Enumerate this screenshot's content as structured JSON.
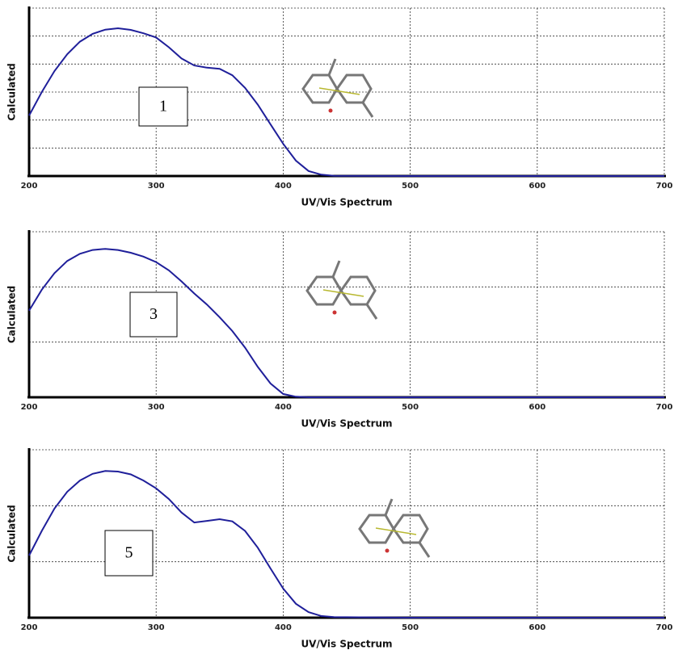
{
  "chart_data": [
    {
      "type": "line",
      "x_label": "UV/Vis Spectrum",
      "y_label": "Calculated",
      "annotation": "1",
      "x": [
        200,
        210,
        220,
        230,
        240,
        250,
        260,
        270,
        280,
        290,
        300,
        310,
        320,
        330,
        340,
        350,
        360,
        370,
        380,
        390,
        400,
        410,
        420,
        430,
        440,
        500,
        600,
        700
      ],
      "series": [
        {
          "color": "#1f1f9a",
          "values": [
            2.16,
            3.0,
            3.75,
            4.35,
            4.8,
            5.08,
            5.23,
            5.28,
            5.22,
            5.1,
            4.95,
            4.6,
            4.2,
            3.95,
            3.87,
            3.83,
            3.6,
            3.15,
            2.55,
            1.85,
            1.15,
            0.55,
            0.18,
            0.05,
            0.01,
            0,
            0,
            0
          ]
        }
      ],
      "xlim": [
        200,
        700
      ],
      "xticks": [
        200,
        300,
        400,
        500,
        600,
        700
      ],
      "ylim": [
        0,
        6
      ],
      "ygrid": [
        1,
        2,
        3,
        4,
        5,
        6
      ],
      "grid": true
    },
    {
      "type": "line",
      "x_label": "UV/Vis Spectrum",
      "y_label": "Calculated",
      "annotation": "3",
      "x": [
        200,
        210,
        220,
        230,
        240,
        250,
        260,
        270,
        280,
        290,
        300,
        310,
        320,
        330,
        340,
        350,
        360,
        370,
        380,
        390,
        400,
        410,
        420,
        430,
        440,
        500,
        600,
        700
      ],
      "series": [
        {
          "color": "#1f1f9a",
          "values": [
            1.57,
            1.95,
            2.25,
            2.47,
            2.6,
            2.67,
            2.69,
            2.67,
            2.62,
            2.55,
            2.45,
            2.3,
            2.1,
            1.88,
            1.68,
            1.45,
            1.2,
            0.9,
            0.55,
            0.25,
            0.06,
            0.01,
            0,
            0,
            0,
            0,
            0,
            0
          ]
        }
      ],
      "xlim": [
        200,
        700
      ],
      "xticks": [
        200,
        300,
        400,
        500,
        600,
        700
      ],
      "ylim": [
        0,
        3
      ],
      "ygrid": [
        1,
        2,
        3
      ],
      "grid": true
    },
    {
      "type": "line",
      "x_label": "UV/Vis Spectrum",
      "y_label": "Calculated",
      "annotation": "5",
      "x": [
        200,
        210,
        220,
        230,
        240,
        250,
        260,
        270,
        280,
        290,
        300,
        310,
        320,
        330,
        340,
        350,
        360,
        370,
        380,
        390,
        400,
        410,
        420,
        430,
        440,
        500,
        600,
        700
      ],
      "series": [
        {
          "color": "#1f1f9a",
          "values": [
            1.11,
            1.55,
            1.95,
            2.25,
            2.45,
            2.57,
            2.62,
            2.61,
            2.56,
            2.45,
            2.31,
            2.12,
            1.88,
            1.7,
            1.73,
            1.76,
            1.72,
            1.55,
            1.25,
            0.88,
            0.52,
            0.25,
            0.1,
            0.03,
            0.01,
            0,
            0,
            0
          ]
        }
      ],
      "xlim": [
        200,
        700
      ],
      "xticks": [
        200,
        300,
        400,
        500,
        600,
        700
      ],
      "ylim": [
        0,
        3
      ],
      "ygrid": [
        1,
        2,
        3
      ],
      "grid": true
    }
  ]
}
